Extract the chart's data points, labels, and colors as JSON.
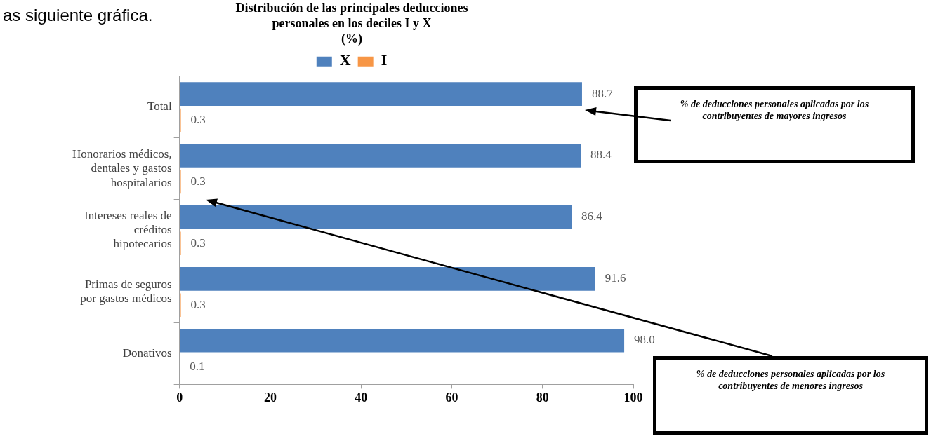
{
  "chart_data": {
    "type": "bar",
    "orientation": "horizontal",
    "title": "Distribución de las principales deducciones personales en los deciles I y X",
    "subtitle": "(%)",
    "categories": [
      "Total",
      "Honorarios médicos, dentales y gastos hospitalarios",
      "Intereses reales de créditos hipotecarios",
      "Primas de seguros por gastos médicos",
      "Donativos"
    ],
    "series": [
      {
        "name": "X",
        "color": "#4f81bd",
        "values": [
          88.7,
          88.4,
          86.4,
          91.6,
          98.0
        ],
        "value_labels": [
          "88.7",
          "88.4",
          "86.4",
          "91.6",
          "98.0"
        ]
      },
      {
        "name": "I",
        "color": "#f79646",
        "values": [
          0.3,
          0.3,
          0.3,
          0.3,
          0.1
        ],
        "value_labels": [
          "0.3",
          "0.3",
          "0.3",
          "0.3",
          "0.1"
        ]
      }
    ],
    "xlim": [
      0,
      100
    ],
    "xticks": [
      0,
      20,
      40,
      60,
      80,
      100
    ],
    "grid": false,
    "legend": "top",
    "annotations": [
      "as siguiente gráfica.",
      "% de deducciones personales aplicadas por los contribuyentes de mayores ingresos",
      "% de deducciones personales aplicadas por los contribuyentes de menores ingresos"
    ]
  }
}
